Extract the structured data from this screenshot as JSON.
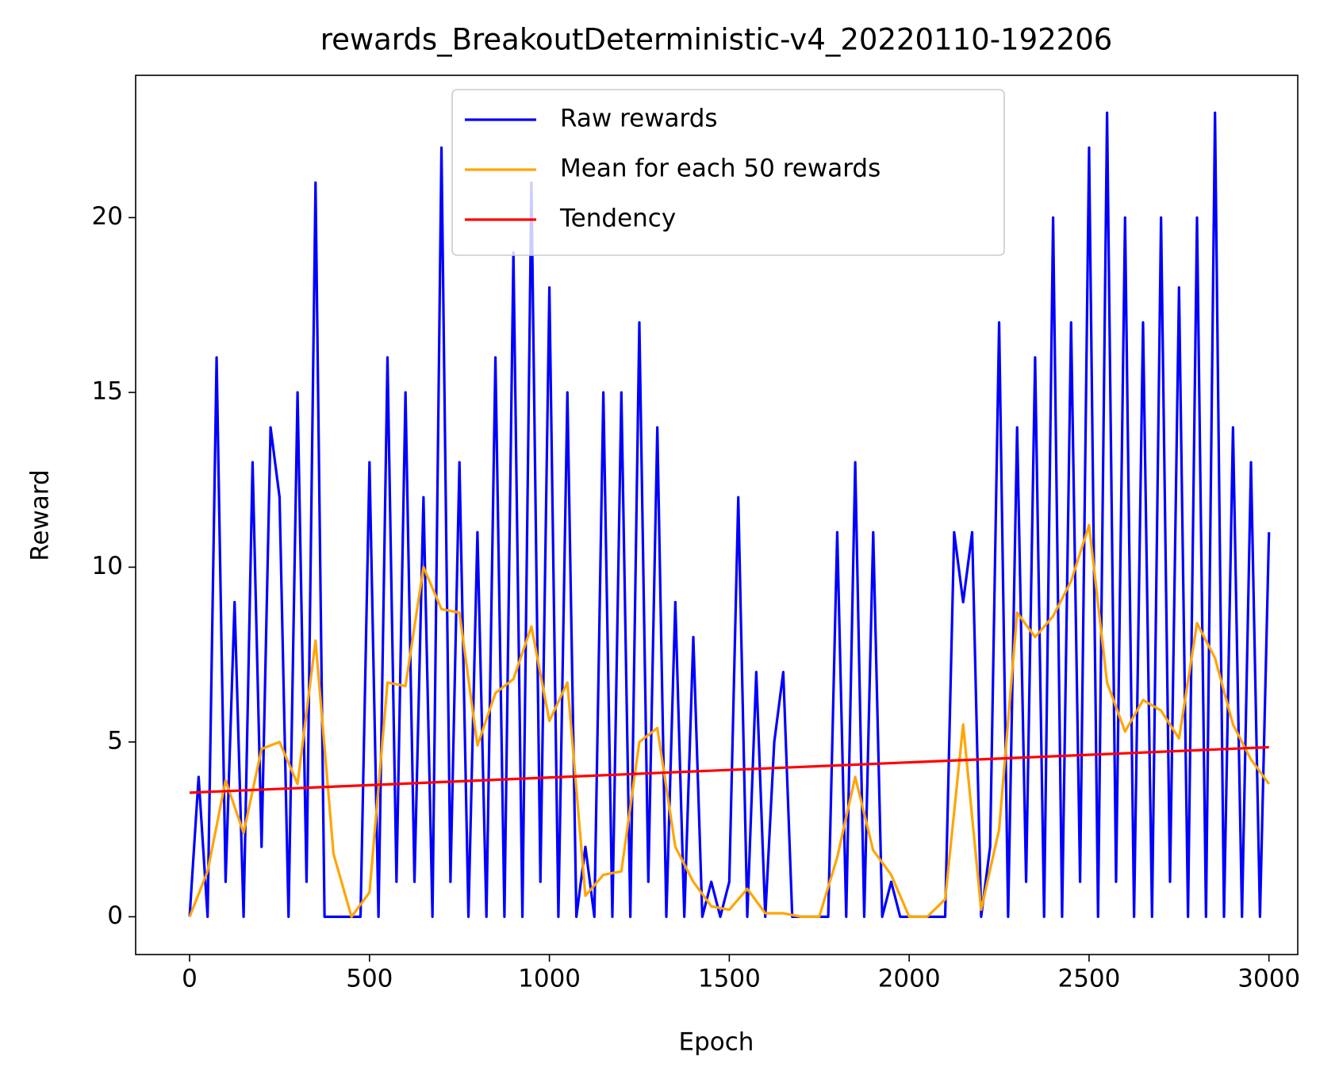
{
  "chart_data": {
    "type": "line",
    "title": "rewards_BreakoutDeterministic-v4_20220110-192206",
    "x_label": "Epoch",
    "y_label": "Reward",
    "xlim": [
      -150,
      3080
    ],
    "ylim": [
      -1.08,
      24.07
    ],
    "xticks": [
      0,
      500,
      1000,
      1500,
      2000,
      2500,
      3000
    ],
    "yticks": [
      0,
      5,
      10,
      15,
      20
    ],
    "legend_position": "upper center",
    "series": [
      {
        "name": "Raw rewards",
        "color": "#0000ff",
        "x": [
          0,
          25,
          50,
          75,
          100,
          125,
          150,
          175,
          200,
          225,
          250,
          275,
          300,
          325,
          350,
          375,
          400,
          425,
          450,
          475,
          500,
          525,
          550,
          575,
          600,
          625,
          650,
          675,
          700,
          725,
          750,
          775,
          800,
          825,
          850,
          875,
          900,
          925,
          950,
          975,
          1000,
          1025,
          1050,
          1075,
          1100,
          1125,
          1150,
          1175,
          1200,
          1225,
          1250,
          1275,
          1300,
          1325,
          1350,
          1375,
          1400,
          1425,
          1450,
          1475,
          1500,
          1525,
          1550,
          1575,
          1600,
          1625,
          1650,
          1675,
          1700,
          1725,
          1750,
          1775,
          1800,
          1825,
          1850,
          1875,
          1900,
          1925,
          1950,
          1975,
          2000,
          2025,
          2050,
          2075,
          2100,
          2125,
          2150,
          2175,
          2200,
          2225,
          2250,
          2275,
          2300,
          2325,
          2350,
          2375,
          2400,
          2425,
          2450,
          2475,
          2500,
          2525,
          2550,
          2575,
          2600,
          2625,
          2650,
          2675,
          2700,
          2725,
          2750,
          2775,
          2800,
          2825,
          2850,
          2875,
          2900,
          2925,
          2950,
          2975,
          3000
        ],
        "values": [
          0,
          4,
          0,
          16,
          1,
          9,
          0,
          13,
          2,
          14,
          12,
          0,
          15,
          1,
          21,
          0,
          0,
          0,
          0,
          0,
          13,
          0,
          16,
          1,
          15,
          1,
          12,
          0,
          22,
          1,
          13,
          0,
          11,
          0,
          16,
          0,
          19,
          0,
          21,
          1,
          18,
          0,
          15,
          0,
          2,
          0,
          15,
          0,
          15,
          0,
          17,
          1,
          14,
          0,
          9,
          0,
          8,
          0,
          1,
          0,
          1,
          12,
          0,
          7,
          0,
          5,
          7,
          0,
          0,
          0,
          0,
          0,
          11,
          0,
          13,
          0,
          11,
          0,
          1,
          0,
          0,
          0,
          0,
          0,
          0,
          11,
          9,
          11,
          0,
          2,
          17,
          0,
          14,
          1,
          16,
          0,
          20,
          0,
          17,
          1,
          22,
          0,
          23,
          1,
          20,
          0,
          17,
          0,
          20,
          1,
          18,
          0,
          20,
          0,
          23,
          0,
          14,
          0,
          13,
          0,
          11
        ]
      },
      {
        "name": "Mean for each 50 rewards",
        "color": "#ffa500",
        "x": [
          0,
          50,
          100,
          150,
          200,
          250,
          300,
          350,
          400,
          450,
          500,
          550,
          600,
          650,
          700,
          750,
          800,
          850,
          900,
          950,
          1000,
          1050,
          1100,
          1150,
          1200,
          1250,
          1300,
          1350,
          1400,
          1450,
          1500,
          1550,
          1600,
          1650,
          1700,
          1750,
          1800,
          1850,
          1900,
          1950,
          2000,
          2050,
          2100,
          2150,
          2200,
          2250,
          2300,
          2350,
          2400,
          2450,
          2500,
          2550,
          2600,
          2650,
          2700,
          2750,
          2800,
          2850,
          2900,
          2950,
          3000
        ],
        "values": [
          0,
          1.3,
          3.9,
          2.4,
          4.8,
          5.0,
          3.8,
          7.9,
          1.8,
          0,
          0.7,
          6.7,
          6.6,
          10.0,
          8.8,
          8.7,
          4.9,
          6.4,
          6.8,
          8.3,
          5.6,
          6.7,
          0.6,
          1.2,
          1.3,
          5.0,
          5.4,
          2.0,
          1.0,
          0.3,
          0.2,
          0.8,
          0.1,
          0.1,
          0,
          0,
          1.7,
          4.0,
          1.9,
          1.2,
          0,
          0,
          0.5,
          5.5,
          0.2,
          2.5,
          8.7,
          8.0,
          8.6,
          9.6,
          11.2,
          6.7,
          5.3,
          6.2,
          5.9,
          5.1,
          8.4,
          7.4,
          5.5,
          4.5,
          3.8
        ]
      },
      {
        "name": "Tendency",
        "color": "#ff0000",
        "x": [
          0,
          3000
        ],
        "values": [
          3.55,
          4.85
        ]
      }
    ]
  }
}
